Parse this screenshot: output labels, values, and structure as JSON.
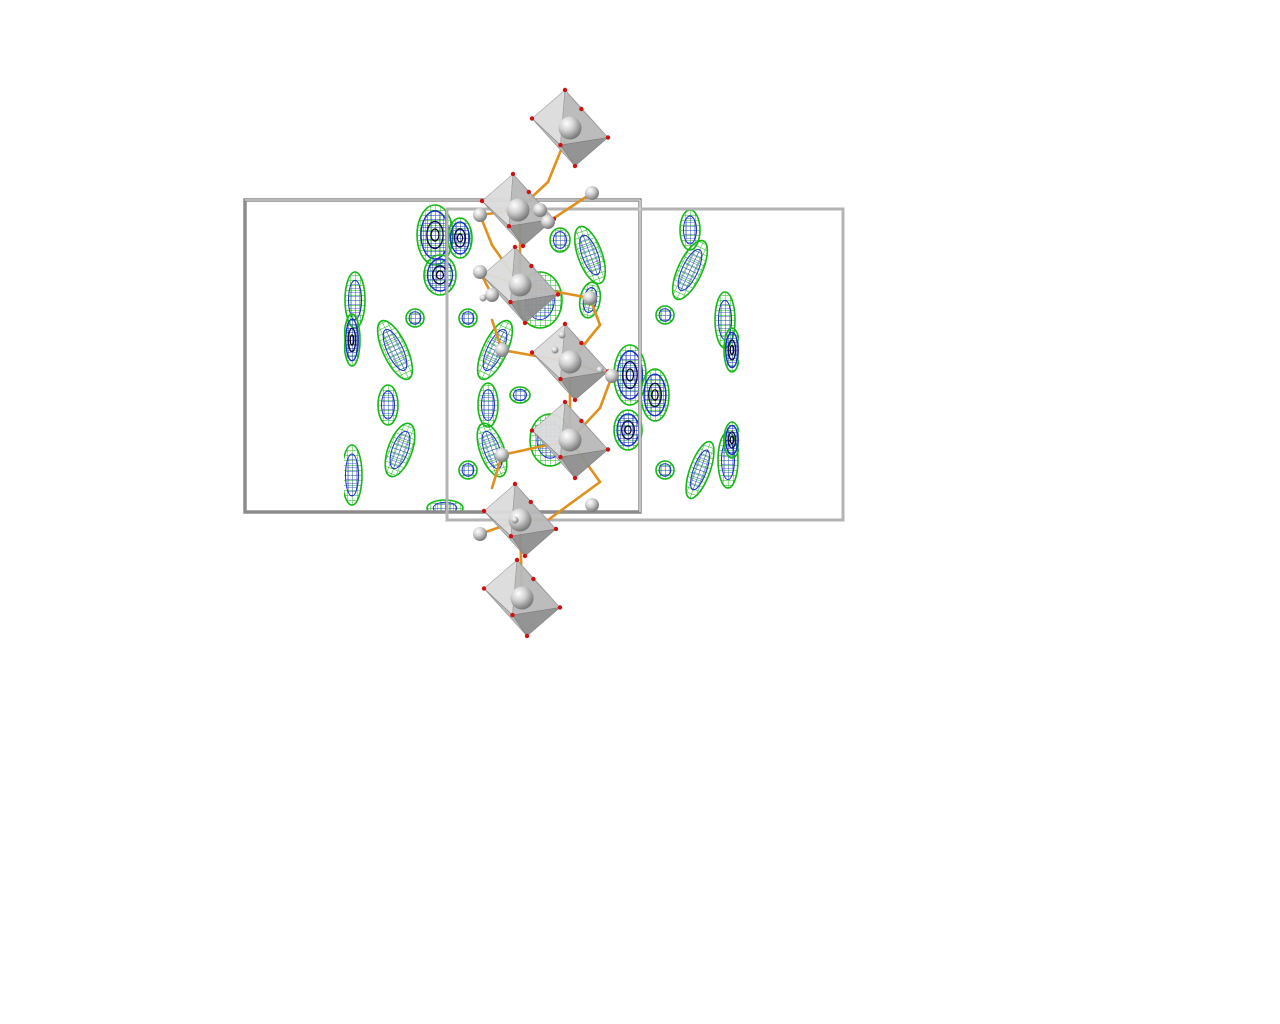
{
  "scene": {
    "background": "#ffffff",
    "colors": {
      "cell_edge": "#b4b4b4",
      "cell_edge_dark": "#8c8c8c",
      "polyhedron_light": "#dcdcdc",
      "polyhedron_mid": "#b9b9b9",
      "polyhedron_dark": "#8f8f8f",
      "atom": "#d6d6d6",
      "bond": "#e0901c",
      "vertex_atom": "#d01010",
      "density_outer": "#16b816",
      "density_mid": "#1a2fc8",
      "density_inner": "#101050"
    }
  }
}
